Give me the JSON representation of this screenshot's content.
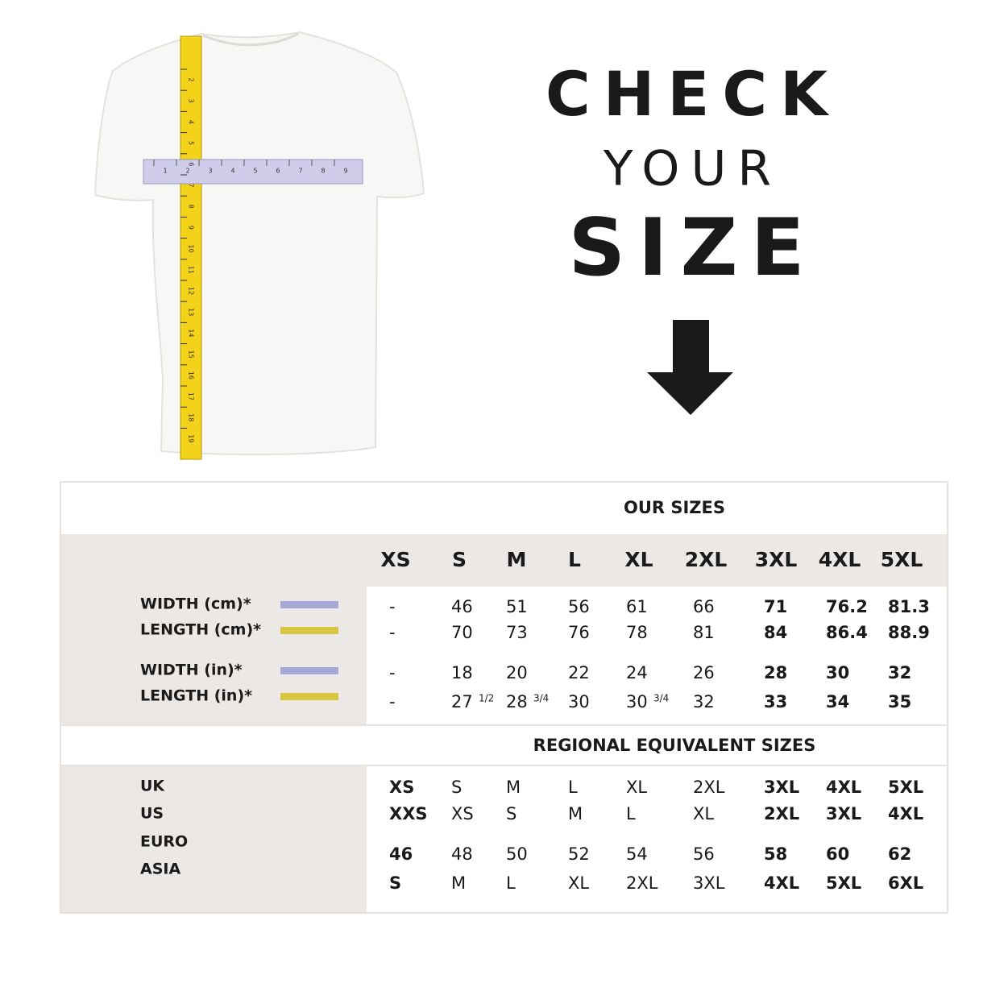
{
  "header": {
    "title_lines": [
      "CHECK",
      "YOUR",
      "SIZE"
    ]
  },
  "tape": {
    "vertical_labels": [
      "2",
      "3",
      "4",
      "5",
      "6",
      "7",
      "8",
      "9",
      "10",
      "11",
      "12",
      "13",
      "14",
      "15",
      "16",
      "17",
      "18",
      "19"
    ],
    "horizontal_labels": [
      "1",
      "2",
      "3",
      "4",
      "5",
      "6",
      "7",
      "8",
      "9"
    ]
  },
  "our_sizes": {
    "title": "OUR SIZES",
    "sizes": [
      "XS",
      "S",
      "M",
      "L",
      "XL",
      "2XL",
      "3XL",
      "4XL",
      "5XL"
    ],
    "rows": [
      {
        "label": "WIDTH (cm)*",
        "color": "#a3a8d4",
        "values": [
          "-",
          "46",
          "51",
          "56",
          "61",
          "66",
          "71",
          "76.2",
          "81.3"
        ]
      },
      {
        "label": "LENGTH (cm)*",
        "color": "#d9c53f",
        "values": [
          "-",
          "70",
          "73",
          "76",
          "78",
          "81",
          "84",
          "86.4",
          "88.9"
        ]
      },
      {
        "label": "WIDTH (in)*",
        "color": "#a3a8d4",
        "values": [
          "-",
          "18",
          "20",
          "22",
          "24",
          "26",
          "28",
          "30",
          "32"
        ]
      },
      {
        "label": "LENGTH (in)*",
        "color": "#d9c53f",
        "values": [
          "-",
          {
            "text": "27",
            "fraction": "1/2"
          },
          {
            "text": "28",
            "fraction": "3/4"
          },
          "30",
          {
            "text": "30",
            "fraction": "3/4"
          },
          "32",
          "33",
          "34",
          "35"
        ]
      }
    ]
  },
  "regional": {
    "title": "REGIONAL EQUIVALENT SIZES",
    "rows": [
      {
        "label": "UK",
        "values": [
          "XS",
          "S",
          "M",
          "L",
          "XL",
          "2XL",
          "3XL",
          "4XL",
          "5XL"
        ]
      },
      {
        "label": "US",
        "values": [
          "XXS",
          "XS",
          "S",
          "M",
          "L",
          "XL",
          "2XL",
          "3XL",
          "4XL"
        ]
      },
      {
        "label": "EURO",
        "values": [
          "46",
          "48",
          "50",
          "52",
          "54",
          "56",
          "58",
          "60",
          "62"
        ]
      },
      {
        "label": "ASIA",
        "values": [
          "S",
          "M",
          "L",
          "XL",
          "2XL",
          "3XL",
          "4XL",
          "5XL",
          "6XL"
        ]
      }
    ]
  }
}
